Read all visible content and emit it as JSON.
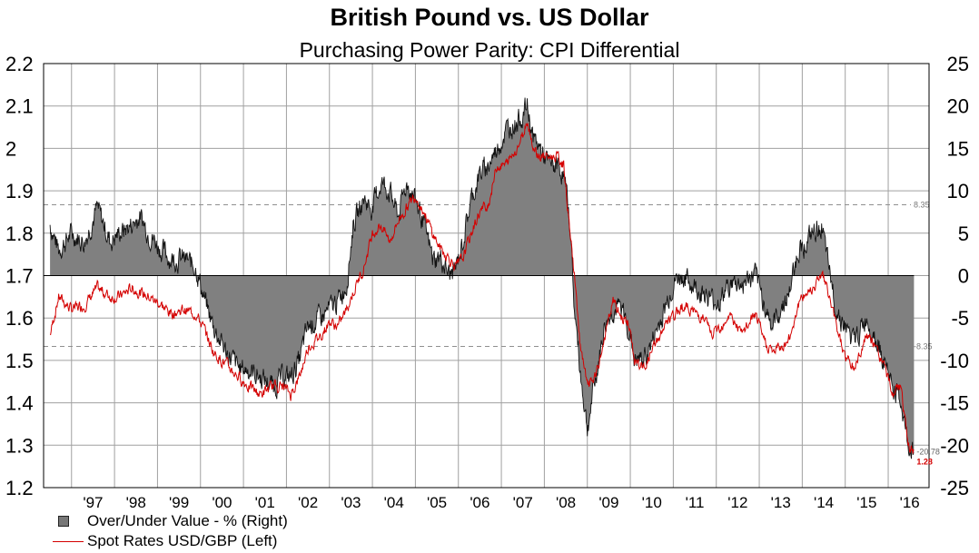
{
  "chart_data": {
    "type": "area",
    "title": "British Pound vs. US Dollar",
    "subtitle": "Purchasing Power Parity: CPI Differential",
    "x_tick_labels": [
      "'97",
      "'98",
      "'99",
      "'00",
      "'01",
      "'02",
      "'03",
      "'04",
      "'05",
      "'06",
      "'07",
      "'08",
      "'09",
      "'10",
      "'11",
      "'12",
      "'13",
      "'14",
      "'15",
      "'16"
    ],
    "left_axis": {
      "min": 1.2,
      "max": 2.2,
      "step": 0.1,
      "tick_labels": [
        "1.2",
        "1.3",
        "1.4",
        "1.5",
        "1.6",
        "1.7",
        "1.8",
        "1.9",
        "2",
        "2.1",
        "2.2"
      ]
    },
    "right_axis": {
      "min": -25,
      "max": 25,
      "step": 5,
      "tick_labels": [
        "-25",
        "-20",
        "-15",
        "-10",
        "-5",
        "0",
        "5",
        "10",
        "15",
        "20",
        "25"
      ]
    },
    "reference_lines": [
      {
        "value": 8.35,
        "label": "8.35"
      },
      {
        "value": -8.35,
        "label": "-8.35"
      }
    ],
    "end_labels": {
      "over_under": "-20.78",
      "spot": "1.28"
    },
    "grid": true,
    "legend_placement": "bottom-left",
    "series": [
      {
        "name": "Over/Under Value - %  (Right)",
        "axis": "right",
        "color": "#808080",
        "points": [
          [
            1996.5,
            6
          ],
          [
            1996.7,
            3
          ],
          [
            1997.0,
            5
          ],
          [
            1997.3,
            4
          ],
          [
            1997.6,
            8
          ],
          [
            1997.9,
            4
          ],
          [
            1998.1,
            5
          ],
          [
            1998.4,
            6
          ],
          [
            1998.6,
            7
          ],
          [
            1998.8,
            5
          ],
          [
            1999.1,
            3
          ],
          [
            1999.3,
            2
          ],
          [
            1999.6,
            2
          ],
          [
            1999.9,
            1
          ],
          [
            2000.1,
            -3
          ],
          [
            2000.3,
            -6
          ],
          [
            2000.6,
            -9
          ],
          [
            2000.9,
            -11
          ],
          [
            2001.1,
            -11
          ],
          [
            2001.4,
            -12
          ],
          [
            2001.7,
            -13
          ],
          [
            2001.9,
            -12
          ],
          [
            2002.1,
            -12
          ],
          [
            2002.3,
            -10
          ],
          [
            2002.5,
            -6
          ],
          [
            2002.8,
            -5
          ],
          [
            2003.0,
            -4
          ],
          [
            2003.2,
            -3
          ],
          [
            2003.4,
            -1
          ],
          [
            2003.55,
            6
          ],
          [
            2003.8,
            9
          ],
          [
            2004.0,
            8
          ],
          [
            2004.2,
            11
          ],
          [
            2004.4,
            10
          ],
          [
            2004.6,
            7
          ],
          [
            2004.8,
            11
          ],
          [
            2005.0,
            9
          ],
          [
            2005.2,
            6
          ],
          [
            2005.4,
            2
          ],
          [
            2005.6,
            2
          ],
          [
            2005.8,
            0
          ],
          [
            2005.95,
            1
          ],
          [
            2006.1,
            4
          ],
          [
            2006.3,
            9
          ],
          [
            2006.5,
            12
          ],
          [
            2006.7,
            13
          ],
          [
            2006.9,
            15
          ],
          [
            2007.1,
            17
          ],
          [
            2007.3,
            18
          ],
          [
            2007.5,
            19
          ],
          [
            2007.6,
            20
          ],
          [
            2007.75,
            16
          ],
          [
            2007.9,
            15
          ],
          [
            2008.1,
            13
          ],
          [
            2008.3,
            13
          ],
          [
            2008.45,
            12
          ],
          [
            2008.6,
            6
          ],
          [
            2008.7,
            -4
          ],
          [
            2008.85,
            -12
          ],
          [
            2009.0,
            -18
          ],
          [
            2009.2,
            -12
          ],
          [
            2009.4,
            -6
          ],
          [
            2009.6,
            -4
          ],
          [
            2009.8,
            -4
          ],
          [
            2009.95,
            -6
          ],
          [
            2010.1,
            -10
          ],
          [
            2010.3,
            -10
          ],
          [
            2010.5,
            -8
          ],
          [
            2010.8,
            -4
          ],
          [
            2011.0,
            -1
          ],
          [
            2011.2,
            0
          ],
          [
            2011.4,
            -1
          ],
          [
            2011.7,
            -2
          ],
          [
            2011.9,
            -3
          ],
          [
            2012.1,
            -3
          ],
          [
            2012.3,
            -1
          ],
          [
            2012.6,
            -1
          ],
          [
            2012.9,
            0
          ],
          [
            2013.1,
            -3
          ],
          [
            2013.3,
            -6
          ],
          [
            2013.5,
            -4
          ],
          [
            2013.7,
            -2
          ],
          [
            2013.9,
            3
          ],
          [
            2014.1,
            4
          ],
          [
            2014.3,
            5
          ],
          [
            2014.45,
            6
          ],
          [
            2014.6,
            1
          ],
          [
            2014.8,
            -4
          ],
          [
            2015.0,
            -6
          ],
          [
            2015.2,
            -8
          ],
          [
            2015.5,
            -5
          ],
          [
            2015.7,
            -7
          ],
          [
            2015.9,
            -10
          ],
          [
            2016.1,
            -13
          ],
          [
            2016.3,
            -15
          ],
          [
            2016.45,
            -20
          ],
          [
            2016.6,
            -20.78
          ]
        ]
      },
      {
        "name": "Spot Rates USD/GBP  (Left)",
        "axis": "left",
        "color": "#d40000",
        "points": [
          [
            1996.5,
            1.56
          ],
          [
            1996.7,
            1.65
          ],
          [
            1997.0,
            1.62
          ],
          [
            1997.3,
            1.63
          ],
          [
            1997.6,
            1.67
          ],
          [
            1997.9,
            1.65
          ],
          [
            1998.1,
            1.65
          ],
          [
            1998.4,
            1.67
          ],
          [
            1998.6,
            1.66
          ],
          [
            1998.8,
            1.65
          ],
          [
            1999.1,
            1.63
          ],
          [
            1999.3,
            1.61
          ],
          [
            1999.6,
            1.62
          ],
          [
            1999.9,
            1.61
          ],
          [
            2000.1,
            1.57
          ],
          [
            2000.3,
            1.52
          ],
          [
            2000.6,
            1.49
          ],
          [
            2000.9,
            1.46
          ],
          [
            2001.1,
            1.44
          ],
          [
            2001.4,
            1.42
          ],
          [
            2001.7,
            1.44
          ],
          [
            2001.9,
            1.44
          ],
          [
            2002.1,
            1.42
          ],
          [
            2002.3,
            1.46
          ],
          [
            2002.5,
            1.53
          ],
          [
            2002.8,
            1.56
          ],
          [
            2003.0,
            1.59
          ],
          [
            2003.2,
            1.58
          ],
          [
            2003.4,
            1.62
          ],
          [
            2003.55,
            1.66
          ],
          [
            2003.8,
            1.72
          ],
          [
            2004.0,
            1.8
          ],
          [
            2004.2,
            1.82
          ],
          [
            2004.4,
            1.78
          ],
          [
            2004.6,
            1.83
          ],
          [
            2004.8,
            1.86
          ],
          [
            2005.0,
            1.89
          ],
          [
            2005.2,
            1.85
          ],
          [
            2005.4,
            1.8
          ],
          [
            2005.6,
            1.76
          ],
          [
            2005.8,
            1.74
          ],
          [
            2005.95,
            1.72
          ],
          [
            2006.1,
            1.74
          ],
          [
            2006.3,
            1.8
          ],
          [
            2006.5,
            1.85
          ],
          [
            2006.7,
            1.87
          ],
          [
            2006.9,
            1.96
          ],
          [
            2007.1,
            1.96
          ],
          [
            2007.3,
            1.99
          ],
          [
            2007.5,
            2.03
          ],
          [
            2007.6,
            2.07
          ],
          [
            2007.75,
            2.0
          ],
          [
            2007.9,
            1.98
          ],
          [
            2008.1,
            1.98
          ],
          [
            2008.3,
            1.98
          ],
          [
            2008.45,
            1.96
          ],
          [
            2008.6,
            1.8
          ],
          [
            2008.7,
            1.7
          ],
          [
            2008.85,
            1.52
          ],
          [
            2009.0,
            1.44
          ],
          [
            2009.2,
            1.46
          ],
          [
            2009.4,
            1.55
          ],
          [
            2009.6,
            1.64
          ],
          [
            2009.8,
            1.6
          ],
          [
            2009.95,
            1.59
          ],
          [
            2010.1,
            1.5
          ],
          [
            2010.3,
            1.48
          ],
          [
            2010.5,
            1.52
          ],
          [
            2010.8,
            1.58
          ],
          [
            2011.0,
            1.6
          ],
          [
            2011.2,
            1.63
          ],
          [
            2011.4,
            1.62
          ],
          [
            2011.7,
            1.6
          ],
          [
            2011.9,
            1.56
          ],
          [
            2012.1,
            1.58
          ],
          [
            2012.3,
            1.61
          ],
          [
            2012.6,
            1.56
          ],
          [
            2012.9,
            1.61
          ],
          [
            2013.1,
            1.55
          ],
          [
            2013.3,
            1.52
          ],
          [
            2013.5,
            1.53
          ],
          [
            2013.7,
            1.55
          ],
          [
            2013.9,
            1.63
          ],
          [
            2014.1,
            1.66
          ],
          [
            2014.3,
            1.68
          ],
          [
            2014.45,
            1.71
          ],
          [
            2014.6,
            1.66
          ],
          [
            2014.8,
            1.58
          ],
          [
            2015.0,
            1.51
          ],
          [
            2015.2,
            1.48
          ],
          [
            2015.5,
            1.56
          ],
          [
            2015.7,
            1.53
          ],
          [
            2015.9,
            1.49
          ],
          [
            2016.1,
            1.42
          ],
          [
            2016.3,
            1.44
          ],
          [
            2016.45,
            1.3
          ],
          [
            2016.6,
            1.28
          ]
        ]
      }
    ]
  },
  "legend": {
    "item_area": "Over/Under Value - %  (Right)",
    "item_line": "Spot Rates USD/GBP  (Left)"
  }
}
